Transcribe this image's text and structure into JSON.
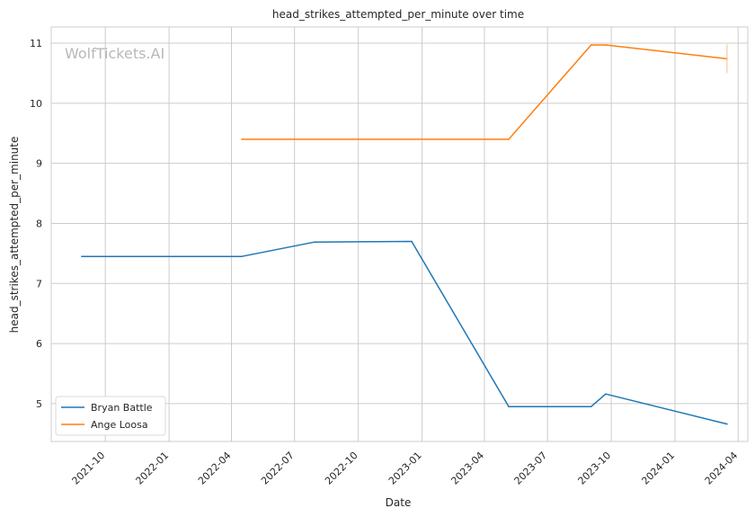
{
  "chart_data": {
    "type": "line",
    "title": "head_strikes_attempted_per_minute over time",
    "xlabel": "Date",
    "ylabel": "head_strikes_attempted_per_minute",
    "watermark": "WolfTickets.AI",
    "grid": true,
    "legend_position": "lower-left",
    "xlim": [
      "2021-07-15",
      "2024-04-15"
    ],
    "ylim": [
      4.37,
      11.27
    ],
    "x_ticks": [
      "2021-10",
      "2022-01",
      "2022-04",
      "2022-07",
      "2022-10",
      "2023-01",
      "2023-04",
      "2023-07",
      "2023-10",
      "2024-01",
      "2024-04"
    ],
    "y_ticks": [
      5,
      6,
      7,
      8,
      9,
      10,
      11
    ],
    "series": [
      {
        "name": "Bryan Battle",
        "color": "#1f77b4",
        "points": [
          {
            "x": "2021-08-28",
            "y": 7.45
          },
          {
            "x": "2022-04-16",
            "y": 7.45
          },
          {
            "x": "2022-07-30",
            "y": 7.69
          },
          {
            "x": "2022-12-17",
            "y": 7.7
          },
          {
            "x": "2023-05-06",
            "y": 4.95
          },
          {
            "x": "2023-09-02",
            "y": 4.95
          },
          {
            "x": "2023-09-23",
            "y": 5.16
          },
          {
            "x": "2024-03-16",
            "y": 4.66
          }
        ]
      },
      {
        "name": "Ange Loosa",
        "color": "#ff7f0e",
        "points": [
          {
            "x": "2022-04-16",
            "y": 9.4
          },
          {
            "x": "2023-05-06",
            "y": 9.4
          },
          {
            "x": "2023-09-02",
            "y": 10.97
          },
          {
            "x": "2023-09-23",
            "y": 10.97
          },
          {
            "x": "2024-03-16",
            "y": 10.74
          }
        ],
        "error_bar": {
          "x": "2024-03-16",
          "low": 10.5,
          "high": 10.98
        }
      }
    ]
  }
}
